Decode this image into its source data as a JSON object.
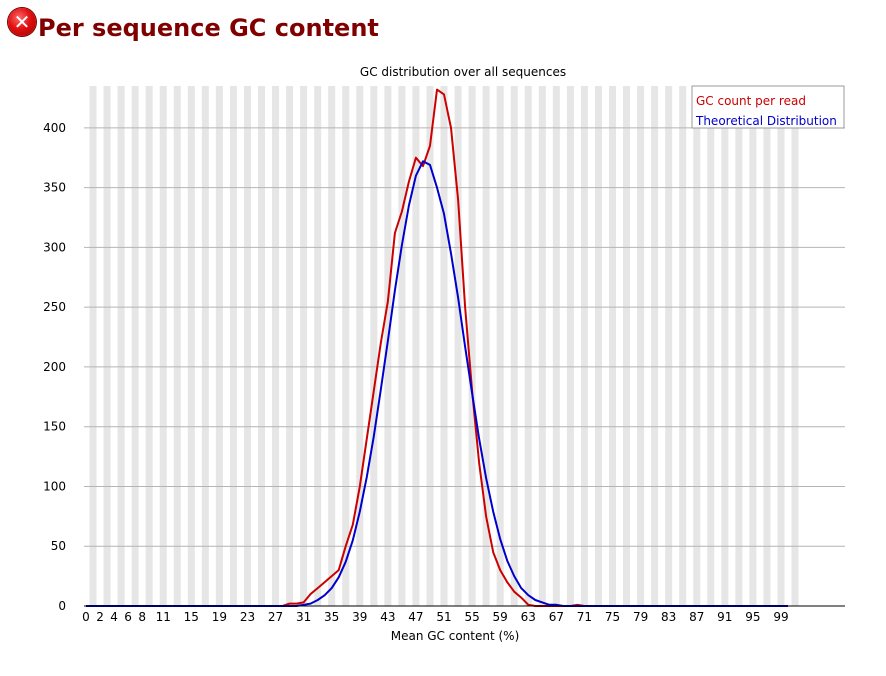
{
  "page": {
    "title": "Per sequence GC content",
    "status_icon": "error-x-icon"
  },
  "chart_data": {
    "type": "line",
    "title": "GC distribution over all sequences",
    "xlabel": "Mean GC content (%)",
    "ylabel": "",
    "xlim": [
      0,
      100
    ],
    "ylim": [
      0,
      435
    ],
    "x_tick_labels": [
      "0",
      "2",
      "4",
      "6",
      "8",
      "11",
      "15",
      "19",
      "23",
      "27",
      "31",
      "35",
      "39",
      "43",
      "47",
      "51",
      "55",
      "59",
      "63",
      "67",
      "71",
      "75",
      "79",
      "83",
      "87",
      "91",
      "95",
      "99"
    ],
    "y_ticks": [
      0,
      50,
      100,
      150,
      200,
      250,
      300,
      350,
      400
    ],
    "grid": true,
    "legend_position": "top-right",
    "series": [
      {
        "name": "GC count per read",
        "color": "#cc0000",
        "points": [
          [
            0,
            0
          ],
          [
            28,
            0
          ],
          [
            29,
            2
          ],
          [
            30,
            2
          ],
          [
            31,
            3
          ],
          [
            32,
            10
          ],
          [
            33,
            15
          ],
          [
            34,
            20
          ],
          [
            35,
            25
          ],
          [
            36,
            30
          ],
          [
            37,
            50
          ],
          [
            38,
            68
          ],
          [
            39,
            100
          ],
          [
            40,
            140
          ],
          [
            41,
            180
          ],
          [
            42,
            220
          ],
          [
            43,
            255
          ],
          [
            44,
            312
          ],
          [
            45,
            330
          ],
          [
            46,
            355
          ],
          [
            47,
            375
          ],
          [
            48,
            368
          ],
          [
            49,
            385
          ],
          [
            50,
            432
          ],
          [
            51,
            428
          ],
          [
            52,
            400
          ],
          [
            53,
            340
          ],
          [
            54,
            250
          ],
          [
            55,
            180
          ],
          [
            56,
            120
          ],
          [
            57,
            75
          ],
          [
            58,
            45
          ],
          [
            59,
            30
          ],
          [
            60,
            20
          ],
          [
            61,
            12
          ],
          [
            62,
            7
          ],
          [
            63,
            1
          ],
          [
            64,
            0
          ],
          [
            65,
            0
          ],
          [
            66,
            0
          ],
          [
            67,
            0
          ],
          [
            68,
            0
          ],
          [
            69,
            0
          ],
          [
            70,
            1
          ],
          [
            71,
            0
          ],
          [
            72,
            0
          ],
          [
            100,
            0
          ]
        ]
      },
      {
        "name": "Theoretical Distribution",
        "color": "#0000cc",
        "points": [
          [
            0,
            0
          ],
          [
            30,
            0
          ],
          [
            31,
            1
          ],
          [
            32,
            2
          ],
          [
            33,
            5
          ],
          [
            34,
            9
          ],
          [
            35,
            15
          ],
          [
            36,
            24
          ],
          [
            37,
            37
          ],
          [
            38,
            55
          ],
          [
            39,
            79
          ],
          [
            40,
            108
          ],
          [
            41,
            142
          ],
          [
            42,
            181
          ],
          [
            43,
            222
          ],
          [
            44,
            264
          ],
          [
            45,
            302
          ],
          [
            46,
            335
          ],
          [
            47,
            360
          ],
          [
            48,
            372
          ],
          [
            49,
            369
          ],
          [
            50,
            350
          ],
          [
            51,
            328
          ],
          [
            52,
            295
          ],
          [
            53,
            258
          ],
          [
            54,
            217
          ],
          [
            55,
            178
          ],
          [
            56,
            140
          ],
          [
            57,
            107
          ],
          [
            58,
            79
          ],
          [
            59,
            56
          ],
          [
            60,
            38
          ],
          [
            61,
            25
          ],
          [
            62,
            15
          ],
          [
            63,
            9
          ],
          [
            64,
            5
          ],
          [
            65,
            3
          ],
          [
            66,
            1
          ],
          [
            67,
            1
          ],
          [
            68,
            0
          ],
          [
            100,
            0
          ]
        ]
      }
    ]
  }
}
